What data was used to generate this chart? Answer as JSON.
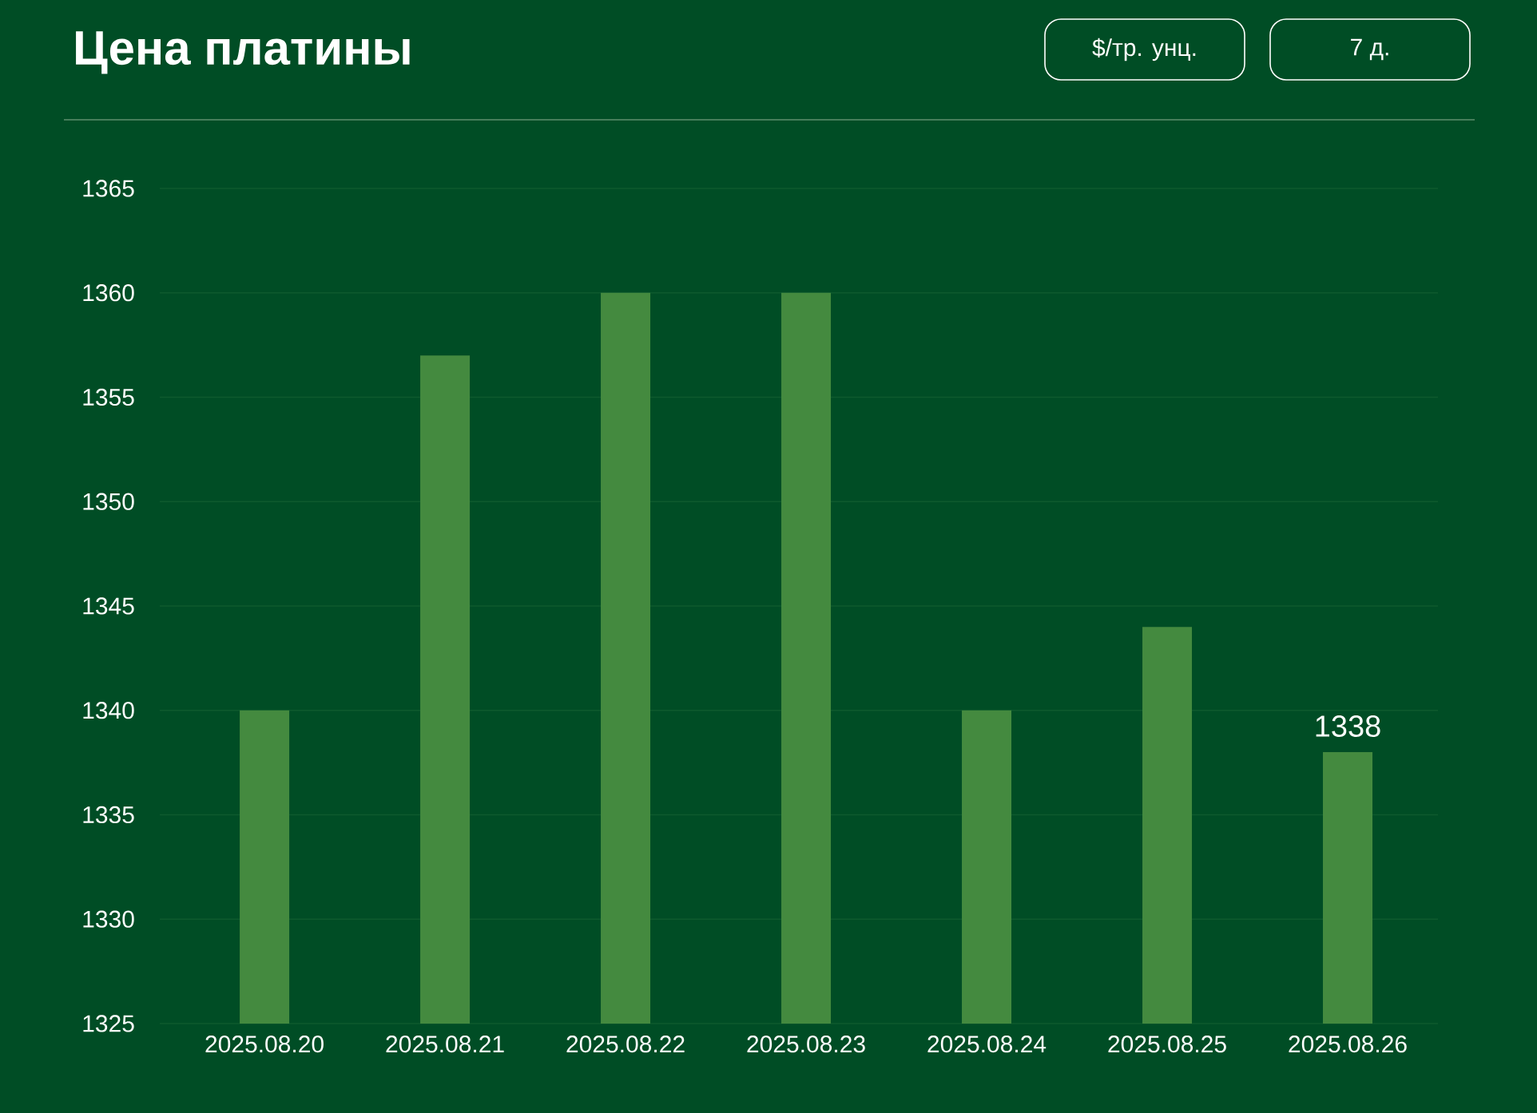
{
  "chart_data": {
    "type": "bar",
    "title": "Цена платины",
    "annotations": [
      "$/тр. унц.",
      "7 д."
    ],
    "categories": [
      "2025.08.20",
      "2025.08.21",
      "2025.08.22",
      "2025.08.23",
      "2025.08.24",
      "2025.08.25",
      "2025.08.26"
    ],
    "values": [
      1340,
      1357,
      1360,
      1360,
      1340,
      1344,
      1338
    ],
    "value_labels": [
      null,
      null,
      null,
      null,
      null,
      null,
      "1338"
    ],
    "color": "#448a3f",
    "ylim": [
      1325,
      1365
    ],
    "yticks": [
      1325,
      1330,
      1335,
      1340,
      1345,
      1350,
      1355,
      1360,
      1365
    ],
    "grid": "y"
  }
}
